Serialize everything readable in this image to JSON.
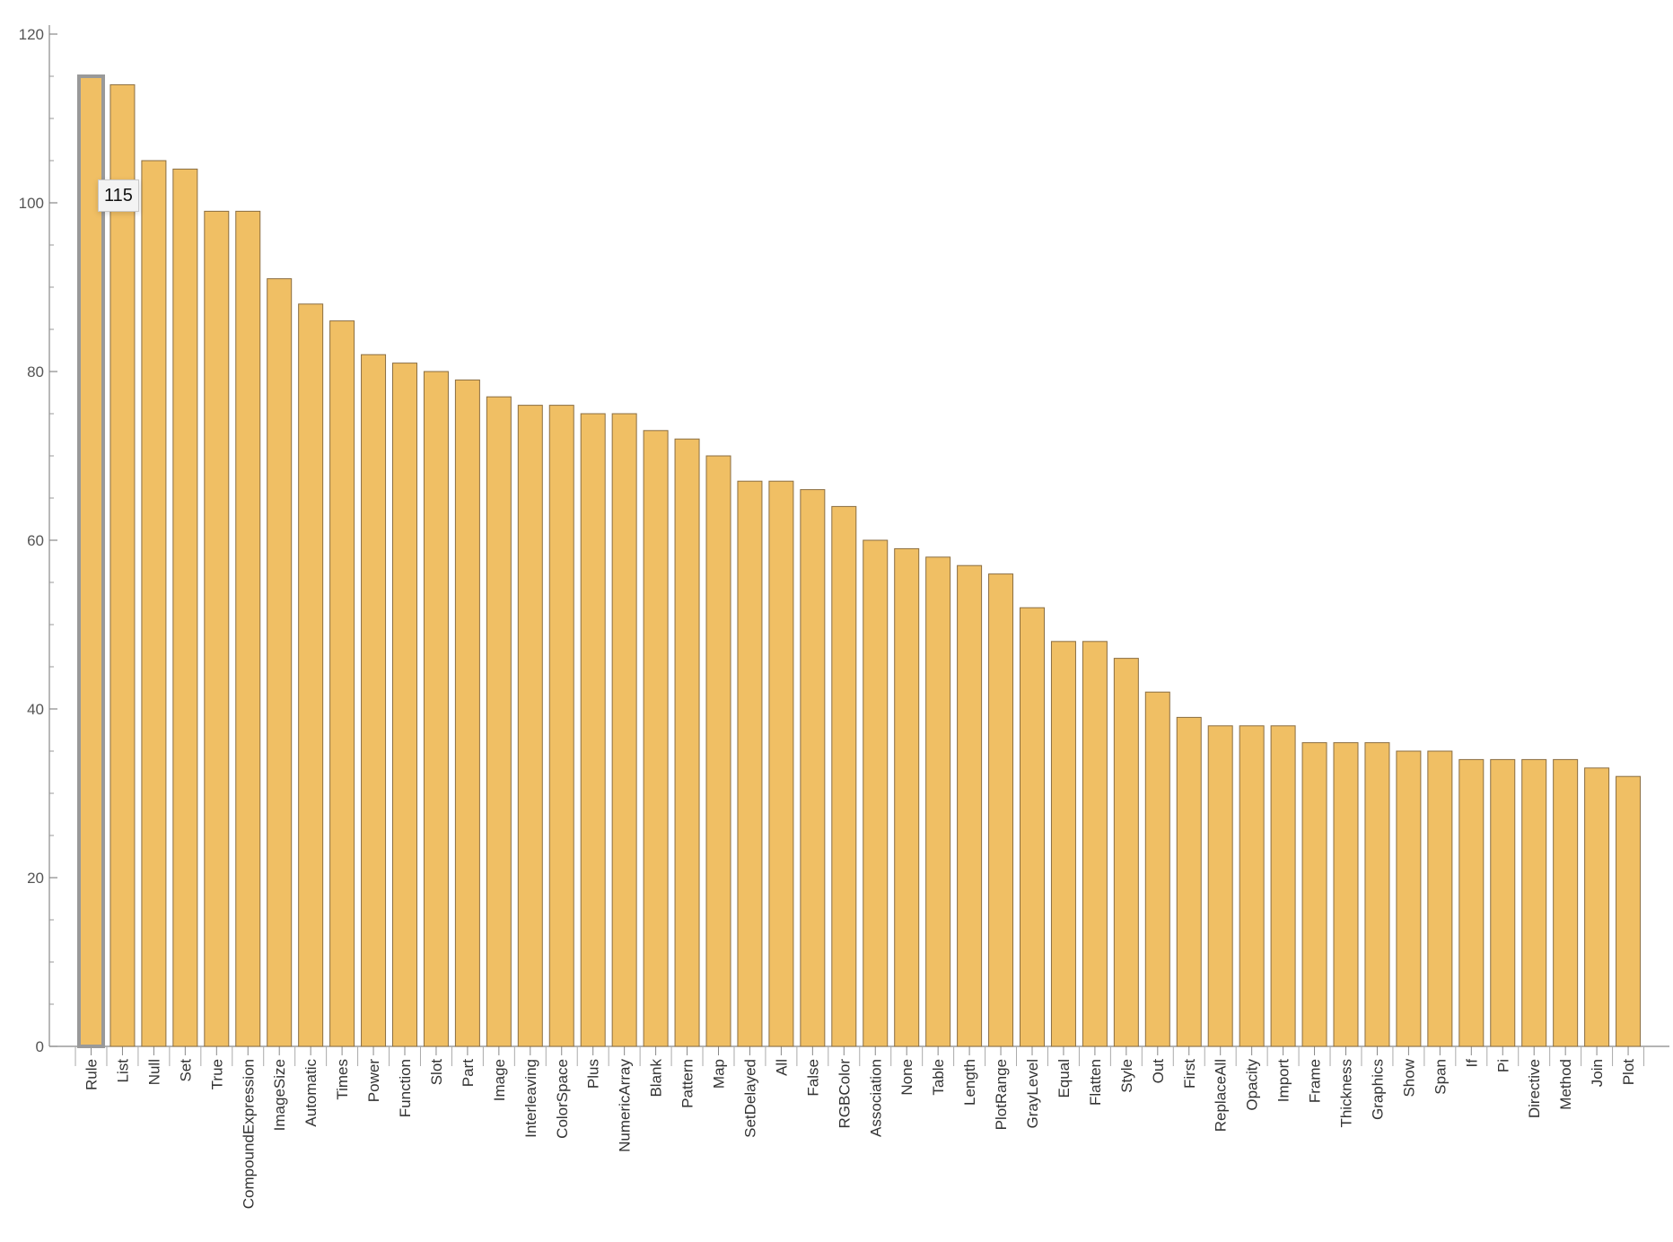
{
  "chart_data": {
    "type": "bar",
    "categories": [
      "Rule",
      "List",
      "Null",
      "Set",
      "True",
      "CompoundExpression",
      "ImageSize",
      "Automatic",
      "Times",
      "Power",
      "Function",
      "Slot",
      "Part",
      "Image",
      "Interleaving",
      "ColorSpace",
      "Plus",
      "NumericArray",
      "Blank",
      "Pattern",
      "Map",
      "SetDelayed",
      "All",
      "False",
      "RGBColor",
      "Association",
      "None",
      "Table",
      "Length",
      "PlotRange",
      "GrayLevel",
      "Equal",
      "Flatten",
      "Style",
      "Out",
      "First",
      "ReplaceAll",
      "Opacity",
      "Import",
      "Frame",
      "Thickness",
      "Graphics",
      "Show",
      "Span",
      "If",
      "Pi",
      "Directive",
      "Method",
      "Join",
      "Plot"
    ],
    "values": [
      115,
      114,
      105,
      104,
      99,
      99,
      91,
      88,
      86,
      82,
      81,
      80,
      79,
      77,
      76,
      76,
      75,
      75,
      73,
      72,
      70,
      67,
      67,
      66,
      64,
      60,
      59,
      58,
      57,
      56,
      52,
      48,
      48,
      46,
      42,
      39,
      38,
      38,
      38,
      36,
      36,
      36,
      35,
      35,
      34,
      34,
      34,
      34,
      33,
      32
    ],
    "ylim": [
      0,
      120
    ],
    "yticks": [
      0,
      20,
      40,
      60,
      80,
      100,
      120
    ],
    "title": "",
    "xlabel": "",
    "ylabel": "",
    "grid": false,
    "colors": {
      "bar_fill": "#f0bf64",
      "bar_stroke": "#8a6e42",
      "highlight_stroke": "#999999"
    }
  },
  "tooltip": {
    "text": "115",
    "category_index": 0
  }
}
